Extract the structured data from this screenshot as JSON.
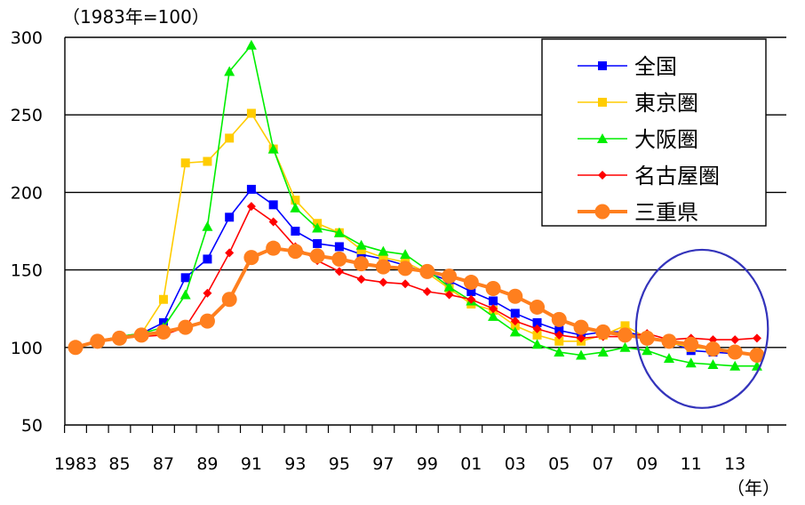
{
  "chart_data": {
    "type": "line",
    "unit_label": "（1983年=100）",
    "x_unit_label": "（年）",
    "ylim": [
      50,
      300
    ],
    "yticks": [
      50,
      100,
      150,
      200,
      250,
      300
    ],
    "x": [
      1983,
      1984,
      1985,
      1986,
      1987,
      1988,
      1989,
      1990,
      1991,
      1992,
      1993,
      1994,
      1995,
      1996,
      1997,
      1998,
      1999,
      2000,
      2001,
      2002,
      2003,
      2004,
      2005,
      2006,
      2007,
      2008,
      2009,
      2010,
      2011,
      2012,
      2013,
      2014
    ],
    "x_tick_labels": [
      {
        "x": 1983,
        "label": "1983"
      },
      {
        "x": 1985,
        "label": "85"
      },
      {
        "x": 1987,
        "label": "87"
      },
      {
        "x": 1989,
        "label": "89"
      },
      {
        "x": 1991,
        "label": "91"
      },
      {
        "x": 1993,
        "label": "93"
      },
      {
        "x": 1995,
        "label": "95"
      },
      {
        "x": 1997,
        "label": "97"
      },
      {
        "x": 1999,
        "label": "99"
      },
      {
        "x": 2001,
        "label": "01"
      },
      {
        "x": 2003,
        "label": "03"
      },
      {
        "x": 2005,
        "label": "05"
      },
      {
        "x": 2007,
        "label": "07"
      },
      {
        "x": 2009,
        "label": "09"
      },
      {
        "x": 2011,
        "label": "11"
      },
      {
        "x": 2013,
        "label": "13"
      }
    ],
    "grid": true,
    "legend_position": "top-right",
    "series": [
      {
        "name": "全国",
        "color": "#0000ff",
        "marker": "square",
        "values": [
          100,
          104,
          107,
          109,
          116,
          145,
          157,
          184,
          202,
          192,
          175,
          167,
          165,
          160,
          157,
          153,
          148,
          143,
          136,
          130,
          122,
          116,
          111,
          108,
          110,
          110,
          107,
          104,
          98,
          97,
          96,
          null
        ]
      },
      {
        "name": "東京圏",
        "color": "#ffcc00",
        "marker": "square",
        "values": [
          100,
          104,
          107,
          109,
          131,
          219,
          220,
          235,
          251,
          228,
          195,
          180,
          174,
          163,
          158,
          155,
          148,
          138,
          128,
          124,
          114,
          108,
          104,
          104,
          108,
          114,
          106,
          103,
          100,
          99,
          98,
          null
        ]
      },
      {
        "name": "大阪圏",
        "color": "#00ee00",
        "marker": "triangle",
        "values": [
          100,
          104,
          107,
          109,
          113,
          134,
          178,
          278,
          295,
          228,
          190,
          177,
          174,
          166,
          162,
          160,
          150,
          139,
          130,
          120,
          110,
          102,
          97,
          95,
          97,
          100,
          98,
          93,
          90,
          89,
          88,
          88
        ]
      },
      {
        "name": "名古屋圏",
        "color": "#ff0000",
        "marker": "diamond",
        "values": [
          100,
          104,
          106,
          107,
          108,
          113,
          135,
          161,
          191,
          181,
          165,
          156,
          149,
          144,
          142,
          141,
          136,
          134,
          131,
          125,
          117,
          112,
          108,
          106,
          107,
          107,
          109,
          105,
          106,
          105,
          105,
          106
        ]
      },
      {
        "name": "三重県",
        "color": "#ff7f1e",
        "marker": "circle",
        "values": [
          100,
          104,
          106,
          108,
          110,
          113,
          117,
          131,
          158,
          164,
          162,
          159,
          157,
          154,
          152,
          151,
          149,
          146,
          142,
          138,
          133,
          126,
          118,
          113,
          110,
          108,
          106,
          104,
          102,
          99,
          97,
          95
        ]
      }
    ]
  },
  "highlight": {
    "shape": "circle",
    "color": "#3333bb",
    "x_range": [
      2009,
      2015
    ],
    "y_range": [
      61,
      163
    ]
  }
}
